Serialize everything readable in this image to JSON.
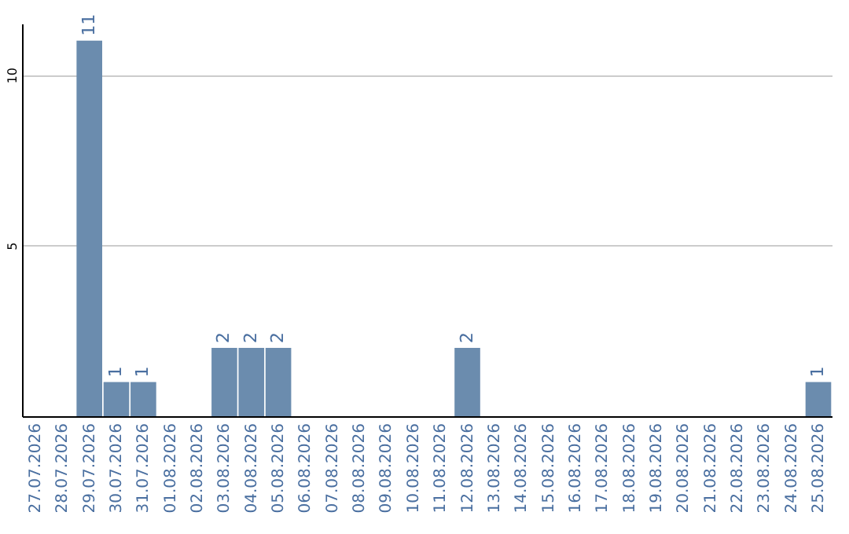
{
  "chart_data": {
    "type": "bar",
    "categories": [
      "27.07.2026",
      "28.07.2026",
      "29.07.2026",
      "30.07.2026",
      "31.07.2026",
      "01.08.2026",
      "02.08.2026",
      "03.08.2026",
      "04.08.2026",
      "05.08.2026",
      "06.08.2026",
      "07.08.2026",
      "08.08.2026",
      "09.08.2026",
      "10.08.2026",
      "11.08.2026",
      "12.08.2026",
      "13.08.2026",
      "14.08.2026",
      "15.08.2026",
      "16.08.2026",
      "17.08.2026",
      "18.08.2026",
      "19.08.2026",
      "20.08.2026",
      "21.08.2026",
      "22.08.2026",
      "23.08.2026",
      "24.08.2026",
      "25.08.2026"
    ],
    "values": [
      0,
      0,
      11,
      1,
      1,
      0,
      0,
      2,
      2,
      2,
      0,
      0,
      0,
      0,
      0,
      0,
      2,
      0,
      0,
      0,
      0,
      0,
      0,
      0,
      0,
      0,
      0,
      0,
      0,
      1
    ],
    "value_labels": [
      null,
      null,
      "11",
      "1",
      "1",
      null,
      null,
      "2",
      "2",
      "2",
      null,
      null,
      null,
      null,
      null,
      null,
      "2",
      null,
      null,
      null,
      null,
      null,
      null,
      null,
      null,
      null,
      null,
      null,
      null,
      "1"
    ],
    "color": "#6b8cae",
    "ylim": [
      0,
      11.5
    ],
    "yticks": [
      5,
      10
    ],
    "grid": "y"
  }
}
